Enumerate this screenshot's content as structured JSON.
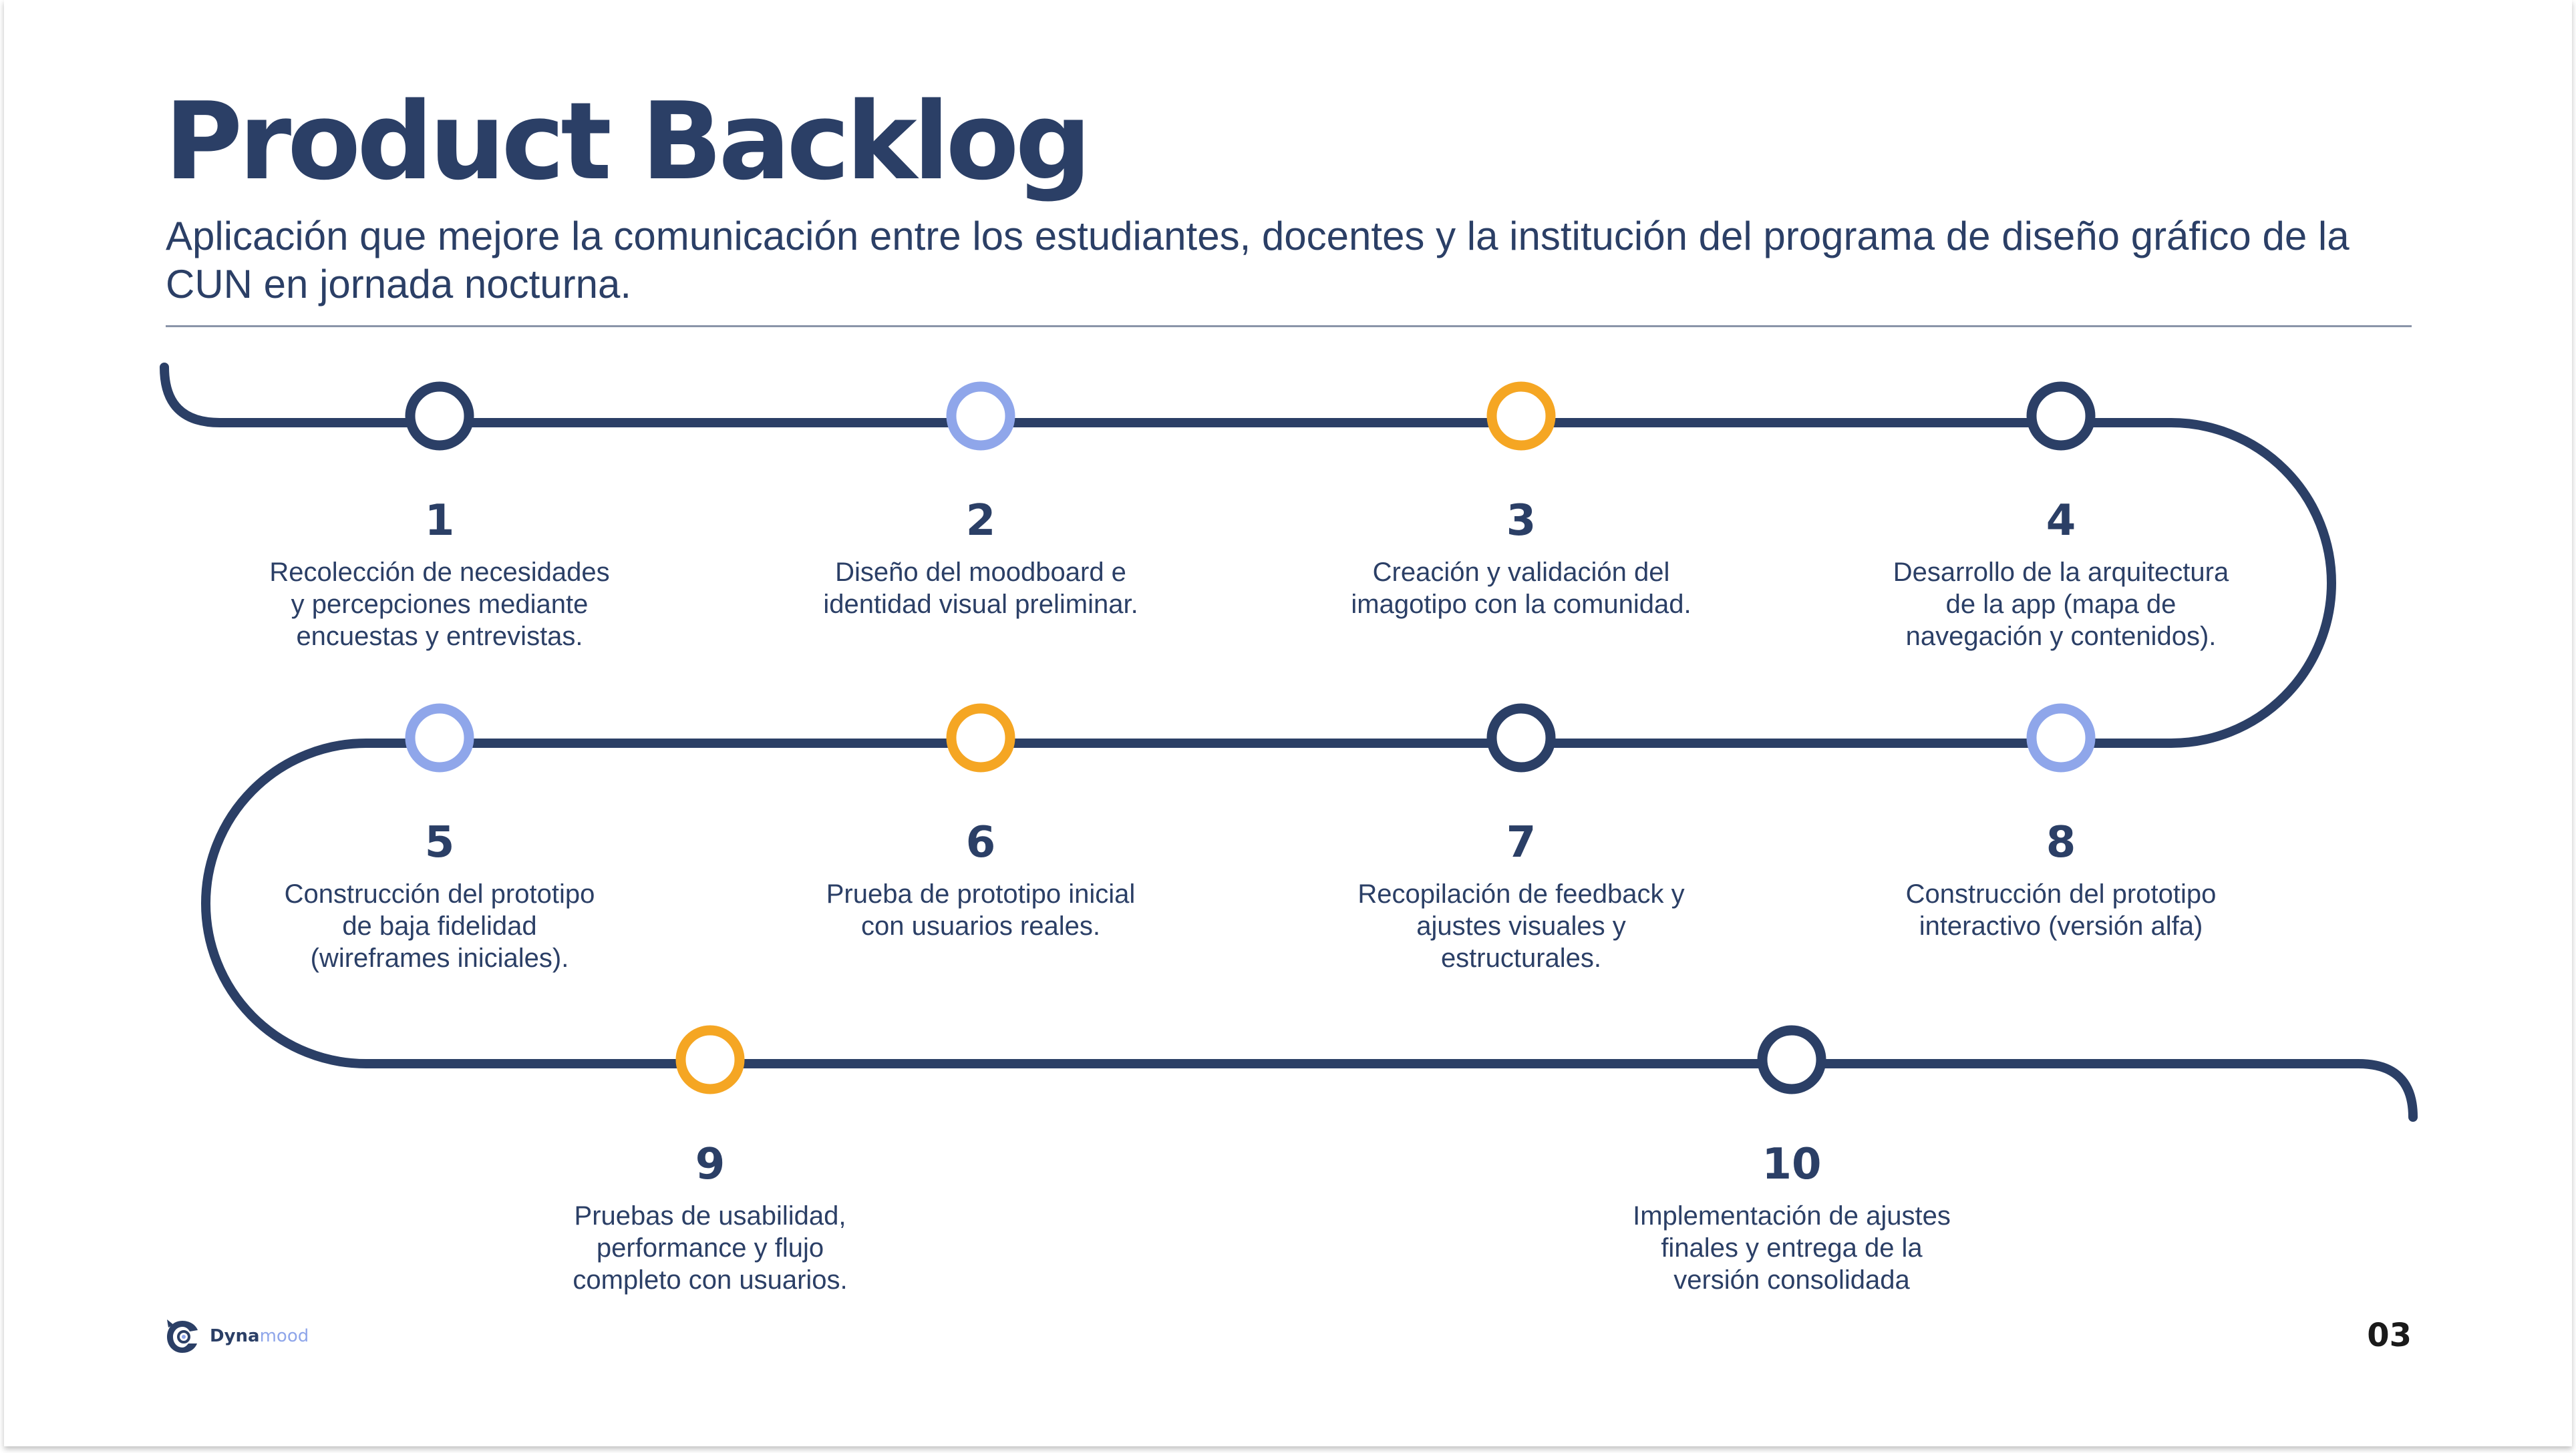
{
  "slide": {
    "title": "Product Backlog",
    "subtitle": "Aplicación que mejore la comunicación entre los estudiantes, docentes y la institución del programa de diseño gráfico de la CUN en jornada nocturna.",
    "page_number": "03"
  },
  "brand": {
    "name_primary": "Dyna",
    "name_accent": "mood",
    "icon": "owl-logo-icon"
  },
  "colors": {
    "navy": "#2b3f66",
    "light_blue": "#8fa6ea",
    "orange": "#f5a623",
    "text": "#2b3f66"
  },
  "steps": [
    {
      "number": "1",
      "color": "navy",
      "description": [
        "Recolección de necesidades",
        "y percepciones mediante",
        "encuestas y entrevistas."
      ]
    },
    {
      "number": "2",
      "color": "light_blue",
      "description": [
        "Diseño del moodboard e",
        "identidad visual preliminar."
      ]
    },
    {
      "number": "3",
      "color": "orange",
      "description": [
        "Creación y validación del",
        "imagotipo con la comunidad."
      ]
    },
    {
      "number": "4",
      "color": "navy",
      "description": [
        "Desarrollo de la arquitectura",
        "de la app (mapa de",
        "navegación y contenidos)."
      ]
    },
    {
      "number": "5",
      "color": "light_blue",
      "description": [
        "Construcción del prototipo",
        "de baja fidelidad",
        "(wireframes iniciales)."
      ]
    },
    {
      "number": "6",
      "color": "orange",
      "description": [
        "Prueba de prototipo inicial",
        "con usuarios reales."
      ]
    },
    {
      "number": "7",
      "color": "navy",
      "description": [
        "Recopilación de feedback y",
        "ajustes visuales y",
        "estructurales."
      ]
    },
    {
      "number": "8",
      "color": "light_blue",
      "description": [
        "Construcción del prototipo",
        "interactivo (versión alfa)"
      ]
    },
    {
      "number": "9",
      "color": "orange",
      "description": [
        "Pruebas de usabilidad,",
        "performance y flujo",
        "completo con usuarios."
      ]
    },
    {
      "number": "10",
      "color": "navy",
      "description": [
        "Implementación de ajustes",
        "finales y entrega de  la",
        "versión consolidada"
      ]
    }
  ]
}
